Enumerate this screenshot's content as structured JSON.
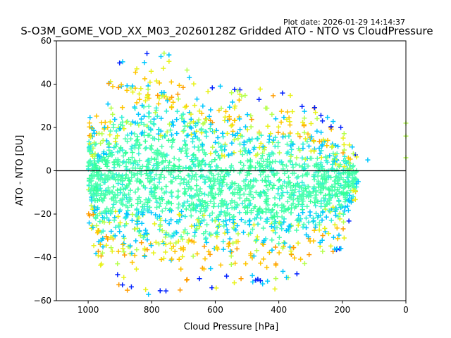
{
  "plot_date": "Plot date: 2026-01-29 14:14:37",
  "chart_data": {
    "type": "scatter",
    "title": "S-O3M_GOME_VOD_XX_M03_20260128Z Gridded ATO - NTO vs CloudPressure",
    "xlabel": "Cloud Pressure [hPa]",
    "ylabel": "ATO - NTO [DU]",
    "xlim": [
      1100,
      0
    ],
    "ylim": [
      -60,
      60
    ],
    "x_ticks": [
      1000,
      800,
      600,
      400,
      200,
      0
    ],
    "y_ticks": [
      -60,
      -40,
      -20,
      0,
      20,
      40,
      60
    ],
    "x_inverted": true,
    "reference_line": 0,
    "grid": false,
    "marker": "+",
    "colors": [
      "#4dffb0",
      "#2ef0d8",
      "#00c8ff",
      "#33ff99",
      "#b5ff4a",
      "#e8f21a",
      "#ffc400",
      "#ff9d00",
      "#0020ff"
    ],
    "density_envelope": [
      {
        "x": 1000,
        "ymin": -25,
        "ymax": 25
      },
      {
        "x": 960,
        "ymin": -48,
        "ymax": 33
      },
      {
        "x": 900,
        "ymin": -55,
        "ymax": 52
      },
      {
        "x": 800,
        "ymin": -58,
        "ymax": 58
      },
      {
        "x": 700,
        "ymin": -55,
        "ymax": 50
      },
      {
        "x": 600,
        "ymin": -55,
        "ymax": 40
      },
      {
        "x": 500,
        "ymin": -52,
        "ymax": 38
      },
      {
        "x": 400,
        "ymin": -55,
        "ymax": 38
      },
      {
        "x": 300,
        "ymin": -43,
        "ymax": 31
      },
      {
        "x": 200,
        "ymin": -36,
        "ymax": 20
      },
      {
        "x": 150,
        "ymin": -10,
        "ymax": 6
      }
    ],
    "outliers": [
      {
        "x": 120,
        "y": 5
      },
      {
        "x": 0,
        "y": 22
      },
      {
        "x": 0,
        "y": 16
      },
      {
        "x": 0,
        "y": 6
      },
      {
        "x": 205,
        "y": 20
      },
      {
        "x": 150,
        "y": -5
      },
      {
        "x": 155,
        "y": -6
      }
    ]
  }
}
